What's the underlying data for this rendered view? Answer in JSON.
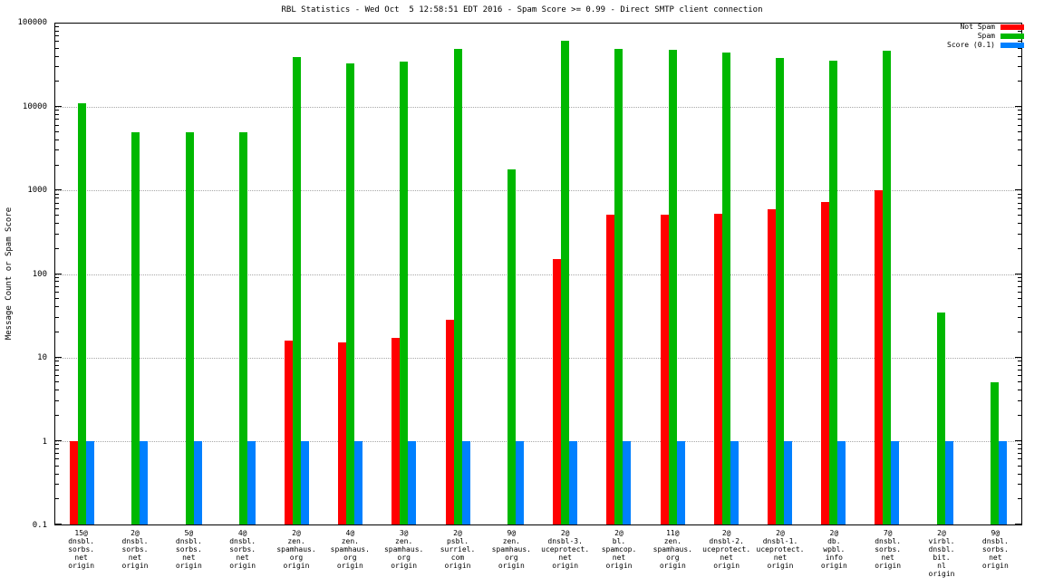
{
  "title": "RBL Statistics - Wed Oct  5 12:58:51 EDT 2016 - Spam Score >= 0.99 - Direct SMTP client connection",
  "ylabel": "Message Count or Spam Score",
  "legend": [
    {
      "label": "Not Spam",
      "color": "#ff0000"
    },
    {
      "label": "Spam",
      "color": "#00b800"
    },
    {
      "label": "Score (0.1)",
      "color": "#0080ff"
    }
  ],
  "chart_data": {
    "type": "bar",
    "scale": "log",
    "title": "RBL Statistics - Wed Oct  5 12:58:51 EDT 2016 - Spam Score >= 0.99 - Direct SMTP client connection",
    "xlabel": "",
    "ylabel": "Message Count or Spam Score",
    "ylim": [
      0.1,
      100000
    ],
    "yticks": [
      100000,
      10000,
      1000,
      100,
      10,
      1,
      0.1
    ],
    "grid": true,
    "legend_position": "top-right",
    "categories": [
      [
        "15@",
        "dnsbl.",
        "sorbs.",
        "net",
        "origin"
      ],
      [
        "2@",
        "dnsbl.",
        "sorbs.",
        "net",
        "origin"
      ],
      [
        "5@",
        "dnsbl.",
        "sorbs.",
        "net",
        "origin"
      ],
      [
        "4@",
        "dnsbl.",
        "sorbs.",
        "net",
        "origin"
      ],
      [
        "2@",
        "zen.",
        "spamhaus.",
        "org",
        "origin"
      ],
      [
        "4@",
        "zen.",
        "spamhaus.",
        "org",
        "origin"
      ],
      [
        "3@",
        "zen.",
        "spamhaus.",
        "org",
        "origin"
      ],
      [
        "2@",
        "psbl.",
        "surriel.",
        "com",
        "origin"
      ],
      [
        "9@",
        "zen.",
        "spamhaus.",
        "org",
        "origin"
      ],
      [
        "2@",
        "dnsbl-3.",
        "uceprotect.",
        "net",
        "origin"
      ],
      [
        "2@",
        "bl.",
        "spamcop.",
        "net",
        "origin"
      ],
      [
        "11@",
        "zen.",
        "spamhaus.",
        "org",
        "origin"
      ],
      [
        "2@",
        "dnsbl-2.",
        "uceprotect.",
        "net",
        "origin"
      ],
      [
        "2@",
        "dnsbl-1.",
        "uceprotect.",
        "net",
        "origin"
      ],
      [
        "2@",
        "db.",
        "wpbl.",
        "info",
        "origin"
      ],
      [
        "7@",
        "dnsbl.",
        "sorbs.",
        "net",
        "origin"
      ],
      [
        "2@",
        "virbl.",
        "dnsbl.",
        "bit.",
        "nl",
        "origin"
      ],
      [
        "9@",
        "dnsbl.",
        "sorbs.",
        "net",
        "origin"
      ]
    ],
    "series": [
      {
        "name": "Not Spam",
        "color": "#ff0000",
        "values": [
          1,
          null,
          null,
          null,
          16,
          15,
          17,
          28,
          null,
          150,
          510,
          510,
          530,
          590,
          730,
          1000,
          null,
          null
        ]
      },
      {
        "name": "Spam",
        "color": "#00b800",
        "values": [
          11000,
          5000,
          5000,
          5000,
          40000,
          33000,
          35000,
          50000,
          1800,
          62000,
          50000,
          48000,
          45000,
          39000,
          36000,
          47000,
          35,
          5
        ]
      },
      {
        "name": "Score (0.1)",
        "color": "#0080ff",
        "values": [
          1,
          1,
          1,
          1,
          1,
          1,
          1,
          1,
          1,
          1,
          1,
          1,
          1,
          1,
          1,
          1,
          1,
          1
        ]
      }
    ]
  }
}
